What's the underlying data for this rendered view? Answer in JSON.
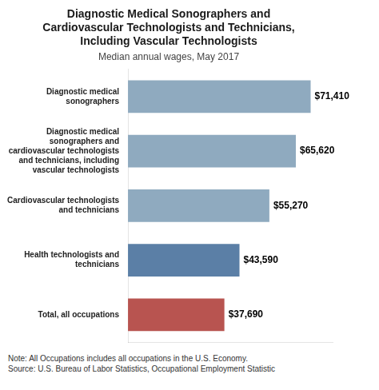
{
  "chart_data": {
    "type": "bar",
    "orientation": "horizontal",
    "title": "Diagnostic Medical Sonographers and\nCardiovascular Technologists and Technicians,\nIncluding Vascular Technologists",
    "subtitle": "Median annual wages, May 2017",
    "note": "Note: All Occupations includes all occupations in the U.S. Economy.\nSource: U.S. Bureau of Labor Statistics, Occupational Employment Statistic",
    "categories": [
      "Total, all occupations",
      "Health technologists and\ntechnicians",
      "Cardiovascular technologists\nand technicians",
      "Diagnostic medical\nsonographers and\ncardiovascular technologists\nand technicians, including\nvascular technologists",
      "Diagnostic medical\nsonographers"
    ],
    "values": [
      37690,
      43590,
      55270,
      65620,
      71410
    ],
    "value_labels": [
      "$37,690",
      "$43,590",
      "$55,270",
      "$65,620",
      "$71,410"
    ],
    "colors": [
      "#b85450",
      "#5b7fa6",
      "#8faabf",
      "#8faabf",
      "#8faabf"
    ],
    "xlim": [
      0,
      80000
    ],
    "tick_labels": "y",
    "grid": false,
    "data_labels": true
  }
}
